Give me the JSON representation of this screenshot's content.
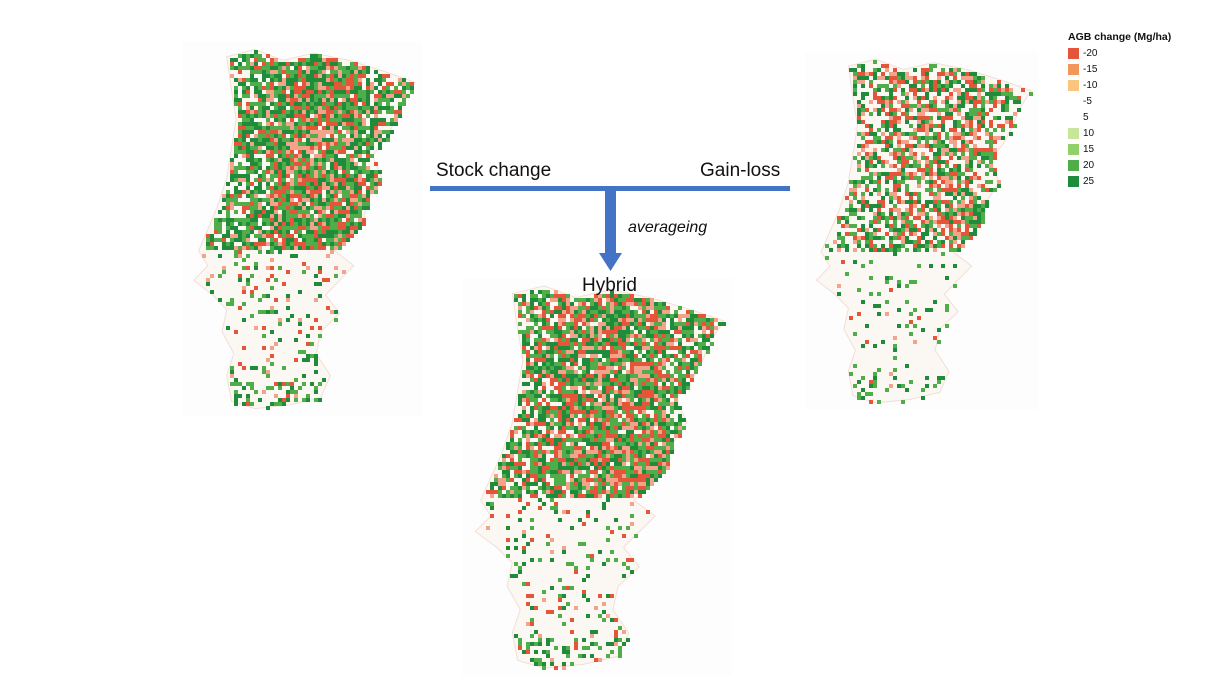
{
  "labels": {
    "stock_change": "Stock change",
    "gain_loss": "Gain-loss",
    "hybrid": "Hybrid",
    "averaging": "averageing"
  },
  "legend": {
    "title": "AGB change (Mg/ha)",
    "items": [
      {
        "value": "-20",
        "color": "#e4553a"
      },
      {
        "value": "-15",
        "color": "#f3965a"
      },
      {
        "value": "-10",
        "color": "#fbc580"
      },
      {
        "value": "-5",
        "color": "#ffffff"
      },
      {
        "value": "5",
        "color": "#ffffff"
      },
      {
        "value": "10",
        "color": "#c6e69a"
      },
      {
        "value": "15",
        "color": "#92d06a"
      },
      {
        "value": "20",
        "color": "#4fae4a"
      },
      {
        "value": "25",
        "color": "#1e8c3a"
      }
    ]
  },
  "colors": {
    "arrow": "#4472c4",
    "loss": "#e4553a",
    "gain": "#1e8c3a",
    "gain_light": "#4fae4a"
  },
  "maps": [
    {
      "id": "stock",
      "name": "stock-change-map",
      "north_green": 0.55,
      "north_red": 0.32,
      "south_green": 0.1,
      "south_red": 0.06
    },
    {
      "id": "gain",
      "name": "gain-loss-map",
      "north_green": 0.35,
      "north_red": 0.3,
      "south_green": 0.06,
      "south_red": 0.02
    },
    {
      "id": "hybrid",
      "name": "hybrid-map",
      "north_green": 0.5,
      "north_red": 0.35,
      "south_green": 0.1,
      "south_red": 0.05
    }
  ]
}
